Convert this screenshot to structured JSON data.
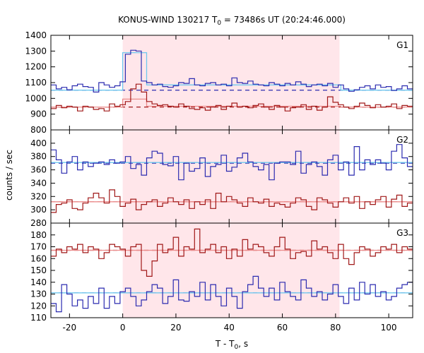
{
  "chart_data": {
    "type": "line",
    "title": "KONUS-WIND 130217 T",
    "title_sub": "0",
    "title_rest": " = 73486s UT (20:24:46.000)",
    "xlabel": "T - T",
    "xlabel_sub": "0",
    "xlabel_rest": ", s",
    "ylabel": "counts / sec",
    "xlim": [
      -27,
      109
    ],
    "x_ticks": [
      -20,
      0,
      20,
      40,
      60,
      80,
      100
    ],
    "shaded_interval": [
      0,
      81.5
    ],
    "step_x": [
      -27,
      -25,
      -23,
      -21,
      -19,
      -17,
      -15,
      -13,
      -11,
      -9,
      -7,
      -5,
      -3,
      -1,
      1,
      3,
      5,
      7,
      9,
      11,
      13,
      15,
      17,
      19,
      21,
      23,
      25,
      27,
      29,
      31,
      33,
      35,
      37,
      39,
      41,
      43,
      45,
      47,
      49,
      51,
      53,
      55,
      57,
      59,
      61,
      63,
      65,
      67,
      69,
      71,
      73,
      75,
      77,
      79,
      81,
      83,
      85,
      87,
      89,
      91,
      93,
      95,
      97,
      99,
      101,
      103,
      105,
      107,
      109
    ],
    "panels": [
      {
        "name": "G1",
        "ylim": [
          800,
          1400
        ],
        "y_ticks": [
          800,
          900,
          1000,
          1100,
          1200,
          1300,
          1400
        ],
        "series": [
          {
            "color": "#2b2bb0",
            "background": 1052,
            "values": [
              1085,
              1060,
              1070,
              1055,
              1080,
              1090,
              1075,
              1070,
              1040,
              1100,
              1085,
              1070,
              1080,
              1105,
              1280,
              1305,
              1300,
              1110,
              1100,
              1085,
              1090,
              1075,
              1070,
              1080,
              1100,
              1095,
              1125,
              1085,
              1080,
              1095,
              1100,
              1085,
              1090,
              1080,
              1130,
              1100,
              1095,
              1110,
              1090,
              1085,
              1080,
              1100,
              1090,
              1080,
              1095,
              1085,
              1105,
              1090,
              1075,
              1085,
              1090,
              1080,
              1095,
              1070,
              1085,
              1060,
              1045,
              1055,
              1070,
              1080,
              1060,
              1085,
              1070,
              1075,
              1050,
              1060,
              1080,
              1060
            ]
          },
          {
            "color": "#a01818",
            "background": 945,
            "values": [
              935,
              955,
              940,
              950,
              945,
              920,
              950,
              945,
              930,
              935,
              920,
              965,
              950,
              960,
              980,
              1060,
              1090,
              1040,
              980,
              965,
              955,
              960,
              950,
              945,
              965,
              950,
              935,
              930,
              940,
              925,
              945,
              955,
              930,
              950,
              970,
              945,
              950,
              940,
              955,
              965,
              945,
              930,
              955,
              945,
              920,
              940,
              945,
              960,
              930,
              950,
              925,
              945,
              1010,
              975,
              960,
              945,
              935,
              950,
              970,
              955,
              940,
              960,
              945,
              950,
              965,
              935,
              955,
              950
            ]
          }
        ],
        "fits": [
          {
            "color": "#6fc8ee",
            "segments": [
              [
                -27,
                1052
              ],
              [
                0,
                1052
              ],
              [
                0,
                1290
              ],
              [
                9,
                1290
              ],
              [
                9,
                1085
              ],
              [
                82,
                1085
              ],
              [
                82,
                1052
              ],
              [
                109,
                1052
              ]
            ]
          },
          {
            "color": "#ec8c8c",
            "segments": [
              [
                -27,
                945
              ],
              [
                0,
                945
              ],
              [
                0,
                995
              ],
              [
                9,
                995
              ],
              [
                9,
                950
              ],
              [
                82,
                950
              ],
              [
                82,
                945
              ],
              [
                109,
                945
              ]
            ]
          }
        ]
      },
      {
        "name": "G2",
        "ylim": [
          280,
          420
        ],
        "y_ticks": [
          280,
          300,
          320,
          340,
          360,
          380,
          400
        ],
        "series": [
          {
            "color": "#2b2bb0",
            "background": 370,
            "values": [
              390,
              375,
              355,
              372,
              380,
              360,
              372,
              365,
              370,
              372,
              368,
              375,
              370,
              372,
              380,
              362,
              368,
              352,
              378,
              388,
              385,
              368,
              366,
              380,
              345,
              370,
              358,
              362,
              378,
              350,
              365,
              368,
              382,
              358,
              364,
              378,
              385,
              372,
              365,
              360,
              368,
              345,
              370,
              372,
              372,
              368,
              388,
              355,
              368,
              372,
              365,
              352,
              375,
              382,
              360,
              372,
              352,
              395,
              360,
              375,
              368,
              375,
              370,
              360,
              388,
              398,
              378,
              365
            ]
          },
          {
            "color": "#a01818",
            "background": 312,
            "values": [
              296,
              308,
              310,
              315,
              302,
              300,
              310,
              318,
              325,
              318,
              310,
              330,
              320,
              305,
              310,
              316,
              300,
              308,
              312,
              315,
              305,
              310,
              318,
              312,
              308,
              315,
              302,
              312,
              308,
              315,
              302,
              325,
              312,
              320,
              315,
              310,
              305,
              318,
              312,
              310,
              316,
              305,
              310,
              308,
              304,
              310,
              318,
              315,
              305,
              300,
              318,
              315,
              310,
              304,
              312,
              318,
              310,
              320,
              302,
              312,
              308,
              315,
              320,
              304,
              316,
              322,
              305,
              310
            ]
          }
        ],
        "fits": [
          {
            "color": "#6fc8ee",
            "segments": [
              [
                -27,
                371
              ],
              [
                109,
                371
              ]
            ]
          },
          {
            "color": "#ec8c8c",
            "segments": [
              [
                -27,
                312
              ],
              [
                109,
                312
              ]
            ]
          }
        ]
      },
      {
        "name": "G3",
        "ylim": [
          110,
          190
        ],
        "y_ticks": [
          110,
          120,
          130,
          140,
          150,
          160,
          170,
          180
        ],
        "series": [
          {
            "color": "#a01818",
            "background": 167,
            "values": [
              162,
              168,
              165,
              170,
              168,
              172,
              165,
              170,
              168,
              160,
              165,
              172,
              170,
              168,
              162,
              170,
              172,
              150,
              145,
              158,
              172,
              165,
              168,
              178,
              162,
              170,
              168,
              185,
              165,
              168,
              172,
              165,
              170,
              160,
              168,
              162,
              176,
              168,
              172,
              170,
              165,
              162,
              170,
              178,
              168,
              160,
              165,
              166,
              162,
              175,
              168,
              170,
              165,
              160,
              172,
              160,
              155,
              165,
              170,
              168,
              162,
              165,
              170,
              168,
              172,
              165,
              170,
              168
            ]
          },
          {
            "color": "#2b2bb0",
            "background": 131,
            "values": [
              122,
              115,
              138,
              130,
              120,
              125,
              118,
              128,
              122,
              135,
              118,
              128,
              122,
              132,
              135,
              128,
              120,
              125,
              132,
              138,
              135,
              122,
              128,
              142,
              125,
              124,
              132,
              128,
              140,
              125,
              138,
              128,
              120,
              135,
              128,
              118,
              132,
              138,
              145,
              135,
              128,
              135,
              125,
              140,
              132,
              128,
              125,
              142,
              135,
              128,
              132,
              125,
              130,
              138,
              128,
              122,
              135,
              125,
              140,
              130,
              138,
              128,
              132,
              125,
              128,
              135,
              138,
              140
            ]
          }
        ],
        "fits": [
          {
            "color": "#ec8c8c",
            "segments": [
              [
                -27,
                167
              ],
              [
                109,
                167
              ]
            ]
          },
          {
            "color": "#6fc8ee",
            "segments": [
              [
                -27,
                131
              ],
              [
                109,
                131
              ]
            ]
          }
        ]
      }
    ]
  }
}
